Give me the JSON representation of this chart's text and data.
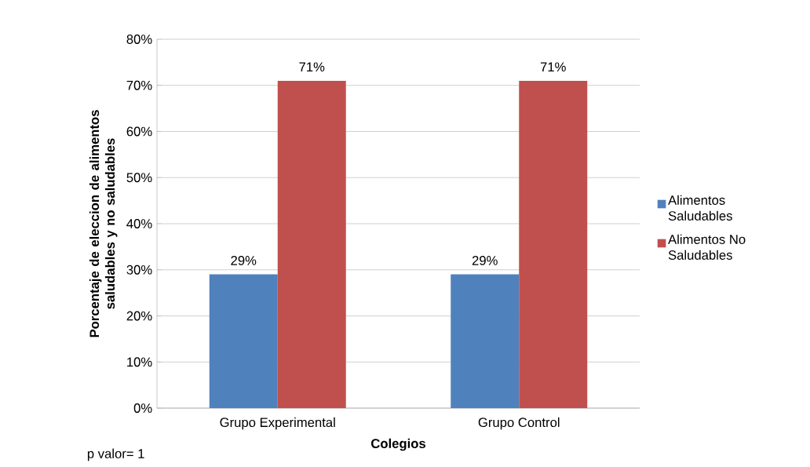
{
  "chart_data": {
    "type": "bar",
    "categories": [
      "Grupo Experimental",
      "Grupo Control"
    ],
    "series": [
      {
        "name": "Alimentos Saludables",
        "color": "#4f81bd",
        "values": [
          29,
          29
        ],
        "value_labels": [
          "29%",
          "29%"
        ]
      },
      {
        "name": "Alimentos No Saludables",
        "color": "#c0504d",
        "values": [
          71,
          71
        ],
        "value_labels": [
          "71%",
          "71%"
        ]
      }
    ],
    "xlabel": "Colegios",
    "ylabel": "Porcentaje de eleccion de alimentos saludables y no saludables",
    "ylim": [
      0,
      80
    ],
    "yticks": [
      {
        "value": 0,
        "label": "0%"
      },
      {
        "value": 10,
        "label": "10%"
      },
      {
        "value": 20,
        "label": "20%"
      },
      {
        "value": 30,
        "label": "30%"
      },
      {
        "value": 40,
        "label": "40%"
      },
      {
        "value": 50,
        "label": "50%"
      },
      {
        "value": 60,
        "label": "60%"
      },
      {
        "value": 70,
        "label": "70%"
      },
      {
        "value": 80,
        "label": "80%"
      }
    ],
    "grid": "y",
    "legend": "right",
    "annotations": [
      "p valor= 1"
    ]
  }
}
